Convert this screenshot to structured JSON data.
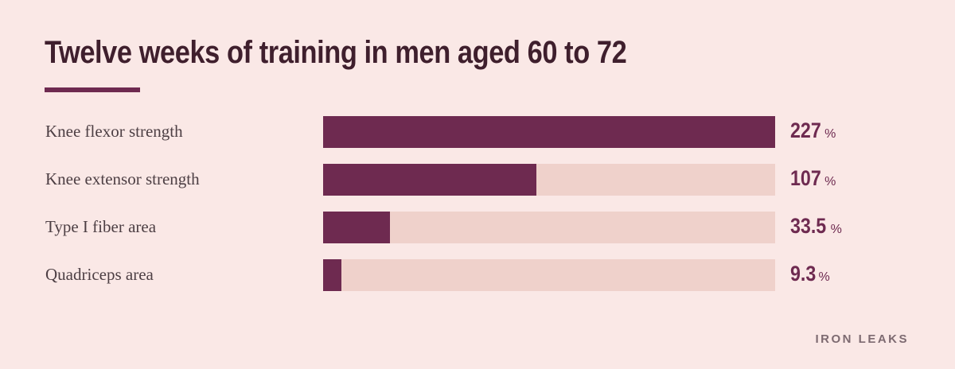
{
  "chart_data": {
    "type": "bar",
    "orientation": "horizontal",
    "title": "Twelve weeks of training in men aged 60 to 72",
    "categories": [
      "Knee flexor strength",
      "Knee extensor strength",
      "Type I fiber area",
      "Quadriceps area"
    ],
    "values": [
      227,
      107,
      33.5,
      9.3
    ],
    "value_labels": [
      "227",
      "107",
      "33.5",
      "9.3"
    ],
    "unit": "%",
    "xlim": [
      0,
      227
    ],
    "grid": false,
    "legend": "none"
  },
  "brand": "IRON LEAKS",
  "colors": {
    "background": "#fae8e6",
    "bar": "#6e2a50",
    "track": "#efd1cb",
    "title": "#3f1f2d",
    "label": "#4d3f44"
  }
}
